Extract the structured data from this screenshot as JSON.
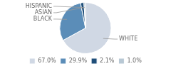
{
  "chart_data": {
    "type": "pie",
    "categories": [
      "WHITE",
      "BLACK",
      "ASIAN",
      "HISPANIC"
    ],
    "values": [
      67.0,
      29.9,
      2.1,
      1.0
    ],
    "value_labels": [
      "67.0%",
      "29.9%",
      "2.1%",
      "1.0%"
    ],
    "colors": [
      "#d0d8e4",
      "#5b8db8",
      "#1f4e79",
      "#b8c8d4"
    ],
    "legend": "bottom"
  }
}
